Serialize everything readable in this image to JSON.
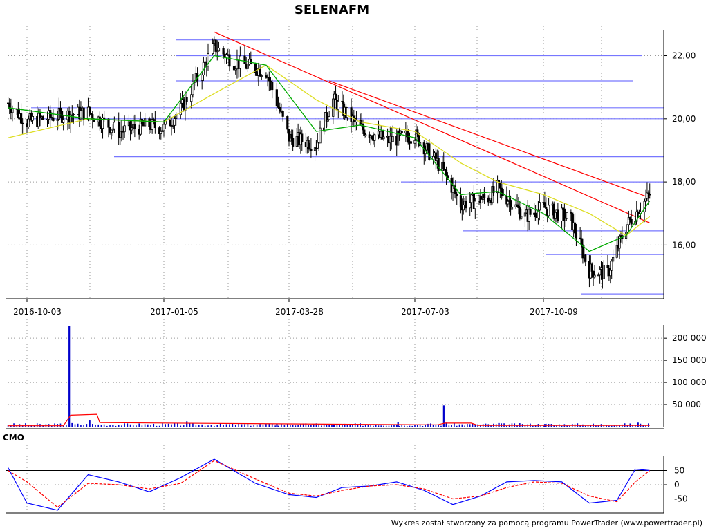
{
  "chart_data": [
    {
      "type": "candlestick",
      "title": "SELENAFM",
      "x_tick_labels": [
        "2016-10-03",
        "2017-01-05",
        "2017-03-28",
        "2017-07-03",
        "2017-10-09"
      ],
      "y_tick_labels": [
        "22,00",
        "20,00",
        "18,00",
        "16,00"
      ],
      "y_ticks": [
        22,
        20,
        18,
        16
      ],
      "ylim": [
        14.3,
        22.8
      ],
      "grid": true,
      "support_resistance_levels": [
        22.5,
        22.0,
        21.2,
        20.35,
        20.0,
        18.8,
        18.0,
        16.45,
        15.7,
        14.45
      ],
      "trendlines": [
        {
          "from": [
            "2017-02-07",
            22.75
          ],
          "to": [
            "2017-12-29",
            16.7
          ]
        },
        {
          "from": [
            "2017-04-28",
            21.2
          ],
          "to": [
            "2017-12-29",
            17.5
          ]
        }
      ],
      "series": [
        {
          "name": "close",
          "x": [
            "2016-09-20",
            "2016-10-03",
            "2016-10-24",
            "2016-11-14",
            "2016-12-05",
            "2016-12-26",
            "2017-01-05",
            "2017-01-16",
            "2017-02-07",
            "2017-02-20",
            "2017-03-13",
            "2017-03-28",
            "2017-04-18",
            "2017-05-01",
            "2017-05-22",
            "2017-06-12",
            "2017-07-03",
            "2017-07-24",
            "2017-08-07",
            "2017-08-28",
            "2017-09-04",
            "2017-09-25",
            "2017-10-09",
            "2017-10-30",
            "2017-11-13",
            "2017-11-27",
            "2017-12-11",
            "2017-12-29"
          ],
          "y": [
            20.5,
            19.9,
            20.1,
            20.2,
            19.6,
            19.8,
            19.7,
            20.3,
            22.3,
            21.8,
            21.5,
            19.4,
            19.2,
            20.6,
            19.7,
            19.3,
            19.5,
            18.4,
            17.3,
            17.5,
            17.8,
            16.9,
            17.2,
            16.8,
            15.2,
            15.1,
            16.6,
            17.6
          ]
        },
        {
          "name": "moving average (short)",
          "x": [
            "2016-09-20",
            "2016-11-14",
            "2017-01-05",
            "2017-02-07",
            "2017-03-13",
            "2017-04-18",
            "2017-05-22",
            "2017-07-03",
            "2017-08-07",
            "2017-09-04",
            "2017-10-09",
            "2017-11-13",
            "2017-12-11",
            "2017-12-29"
          ],
          "y": [
            20.35,
            20.0,
            19.9,
            22.0,
            21.7,
            19.6,
            19.8,
            19.4,
            17.6,
            17.7,
            17.0,
            15.8,
            16.3,
            17.4
          ]
        },
        {
          "name": "moving average (long)",
          "x": [
            "2016-09-20",
            "2016-11-14",
            "2017-01-05",
            "2017-02-07",
            "2017-03-13",
            "2017-04-18",
            "2017-05-22",
            "2017-07-03",
            "2017-08-07",
            "2017-09-04",
            "2017-10-09",
            "2017-11-13",
            "2017-12-11",
            "2017-12-29"
          ],
          "y": [
            19.4,
            20.0,
            19.9,
            20.8,
            21.7,
            20.6,
            19.9,
            19.6,
            18.6,
            18.0,
            17.6,
            17.0,
            16.3,
            16.9
          ]
        }
      ]
    },
    {
      "type": "bar",
      "y_tick_labels": [
        "200 000",
        "150 000",
        "100 000",
        "50 000"
      ],
      "y_ticks": [
        200000,
        150000,
        100000,
        50000
      ],
      "ylim": [
        0,
        230000
      ],
      "series": [
        {
          "name": "volume",
          "x": [
            "2016-11-01",
            "2016-11-03",
            "2016-11-15",
            "2016-12-01",
            "2017-01-20",
            "2017-03-20",
            "2017-05-01",
            "2017-06-20",
            "2017-07-25",
            "2017-07-27",
            "2017-09-05",
            "2017-10-10",
            "2017-11-20",
            "2017-12-20"
          ],
          "y": [
            228000,
            8000,
            14000,
            4000,
            12000,
            6000,
            5000,
            10000,
            48000,
            9000,
            8000,
            6000,
            3000,
            9000
          ]
        },
        {
          "name": "volume average",
          "x": [
            "2016-09-20",
            "2016-10-28",
            "2016-11-02",
            "2016-11-20",
            "2016-11-22",
            "2017-07-20",
            "2017-07-26",
            "2017-08-15",
            "2017-08-20",
            "2017-12-29"
          ],
          "y": [
            2000,
            2000,
            26000,
            28000,
            9000,
            4000,
            8000,
            8000,
            3000,
            3000
          ]
        }
      ]
    },
    {
      "type": "line",
      "panel_label": "CMO",
      "y_tick_labels": [
        "50",
        "0",
        "-50"
      ],
      "y_ticks": [
        50,
        0,
        -50
      ],
      "ylim": [
        -100,
        100
      ],
      "series": [
        {
          "name": "CMO",
          "x": [
            "2016-09-20",
            "2016-10-03",
            "2016-10-24",
            "2016-11-14",
            "2016-12-05",
            "2016-12-26",
            "2017-01-16",
            "2017-02-07",
            "2017-03-06",
            "2017-03-28",
            "2017-04-18",
            "2017-05-08",
            "2017-05-29",
            "2017-06-19",
            "2017-07-10",
            "2017-08-01",
            "2017-08-22",
            "2017-09-11",
            "2017-10-02",
            "2017-10-23",
            "2017-11-13",
            "2017-12-04",
            "2017-12-18",
            "2017-12-29"
          ],
          "y": [
            60,
            -65,
            -90,
            35,
            10,
            -25,
            25,
            90,
            5,
            -35,
            -45,
            -10,
            -5,
            10,
            -20,
            -70,
            -40,
            10,
            15,
            10,
            -65,
            -55,
            55,
            50
          ]
        },
        {
          "name": "CMO signal",
          "x": [
            "2016-09-20",
            "2016-10-03",
            "2016-10-24",
            "2016-11-14",
            "2016-12-05",
            "2016-12-26",
            "2017-01-16",
            "2017-02-07",
            "2017-03-06",
            "2017-03-28",
            "2017-04-18",
            "2017-05-08",
            "2017-05-29",
            "2017-06-19",
            "2017-07-10",
            "2017-08-01",
            "2017-08-22",
            "2017-09-11",
            "2017-10-02",
            "2017-10-23",
            "2017-11-13",
            "2017-12-04",
            "2017-12-18",
            "2017-12-29"
          ],
          "y": [
            50,
            10,
            -80,
            5,
            0,
            -15,
            5,
            85,
            20,
            -30,
            -40,
            -20,
            -5,
            0,
            -15,
            -50,
            -40,
            -10,
            10,
            5,
            -40,
            -60,
            10,
            50
          ]
        }
      ]
    }
  ],
  "footer": {
    "credit": "Wykres został stworzony za pomocą programu PowerTrader (www.powertrader.pl)"
  },
  "colors": {
    "price_bar": "#000000",
    "ma_short": "#00aa00",
    "ma_long": "#dddd22",
    "trendline": "#ff0000",
    "level": "#7777ff",
    "volume": "#0000cc",
    "volume_avg": "#ff0000",
    "cmo": "#0000ff",
    "cmo_signal": "#ff0000",
    "grid": "#999999"
  }
}
